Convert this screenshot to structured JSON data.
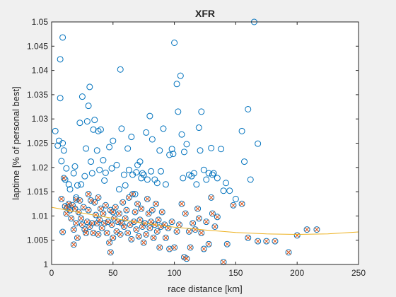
{
  "chart_data": {
    "type": "scatter",
    "title": "XFR",
    "xlabel": "race distance [km]",
    "ylabel": "laptime [% of personal best]",
    "xlim": [
      0,
      250
    ],
    "ylim": [
      1,
      1.05
    ],
    "xticks": [
      "0",
      "50",
      "100",
      "150",
      "200",
      "250"
    ],
    "yticks": [
      "1",
      "1.005",
      "1.01",
      "1.015",
      "1.02",
      "1.025",
      "1.03",
      "1.035",
      "1.04",
      "1.045",
      "1.05"
    ],
    "grid": false,
    "legend": "none",
    "colors": {
      "circles": "#0072BD",
      "crosses": "#D95319",
      "fit": "#EDB120"
    },
    "series": [
      {
        "marker": "circle",
        "points": [
          [
            3,
            1.0275
          ],
          [
            5,
            1.0245
          ],
          [
            6,
            1.0255
          ],
          [
            7,
            1.0423
          ],
          [
            7,
            1.0343
          ],
          [
            8,
            1.0213
          ],
          [
            9,
            1.0468
          ],
          [
            9,
            1.025
          ],
          [
            10,
            1.0235
          ],
          [
            11,
            1.0175
          ],
          [
            12,
            1.0198
          ],
          [
            14,
            1.0165
          ],
          [
            15,
            1.0155
          ],
          [
            18,
            1.0188
          ],
          [
            19,
            1.0202
          ],
          [
            20,
            1.0138
          ],
          [
            21,
            1.0163
          ],
          [
            23,
            1.0292
          ],
          [
            24,
            1.0165
          ],
          [
            25,
            1.0346
          ],
          [
            27,
            1.0182
          ],
          [
            28,
            1.0239
          ],
          [
            29,
            1.0295
          ],
          [
            30,
            1.0327
          ],
          [
            31,
            1.0366
          ],
          [
            32,
            1.0212
          ],
          [
            33,
            1.0188
          ],
          [
            34,
            1.0278
          ],
          [
            35,
            1.0298
          ],
          [
            37,
            1.0235
          ],
          [
            38,
            1.0275
          ],
          [
            39,
            1.0195
          ],
          [
            40,
            1.0278
          ],
          [
            42,
            1.0215
          ],
          [
            43,
            1.0173
          ],
          [
            44,
            1.0189
          ],
          [
            47,
            1.0242
          ],
          [
            49,
            1.0198
          ],
          [
            50,
            1.0255
          ],
          [
            53,
            1.0205
          ],
          [
            55,
            1.0155
          ],
          [
            56,
            1.0402
          ],
          [
            57,
            1.028
          ],
          [
            59,
            1.0185
          ],
          [
            60,
            1.0163
          ],
          [
            62,
            1.0239
          ],
          [
            63,
            1.0195
          ],
          [
            65,
            1.0263
          ],
          [
            66,
            1.0185
          ],
          [
            68,
            1.0145
          ],
          [
            69,
            1.019
          ],
          [
            70,
            1.0205
          ],
          [
            72,
            1.0212
          ],
          [
            73,
            1.0178
          ],
          [
            74,
            1.0188
          ],
          [
            75,
            1.0185
          ],
          [
            77,
            1.0272
          ],
          [
            78,
            1.0175
          ],
          [
            80,
            1.0306
          ],
          [
            81,
            1.0192
          ],
          [
            82,
            1.0258
          ],
          [
            84,
            1.0175
          ],
          [
            86,
            1.0168
          ],
          [
            88,
            1.0235
          ],
          [
            89,
            1.0192
          ],
          [
            91,
            1.028
          ],
          [
            93,
            1.0165
          ],
          [
            96,
            1.0226
          ],
          [
            98,
            1.0238
          ],
          [
            99,
            1.0228
          ],
          [
            100,
            1.0457
          ],
          [
            102,
            1.0372
          ],
          [
            103,
            1.0315
          ],
          [
            105,
            1.0389
          ],
          [
            106,
            1.0268
          ],
          [
            107,
            1.0178
          ],
          [
            108,
            1.0232
          ],
          [
            110,
            1.0248
          ],
          [
            112,
            1.0185
          ],
          [
            114,
            1.0182
          ],
          [
            116,
            1.0188
          ],
          [
            118,
            1.0165
          ],
          [
            120,
            1.0282
          ],
          [
            121,
            1.0235
          ],
          [
            122,
            1.0315
          ],
          [
            124,
            1.0195
          ],
          [
            126,
            1.0175
          ],
          [
            128,
            1.0188
          ],
          [
            130,
            1.024
          ],
          [
            131,
            1.0185
          ],
          [
            132,
            1.0188
          ],
          [
            135,
            1.0178
          ],
          [
            138,
            1.0238
          ],
          [
            140,
            1.0152
          ],
          [
            142,
            1.0168
          ],
          [
            145,
            1.0152
          ],
          [
            150,
            1.0135
          ],
          [
            155,
            1.0275
          ],
          [
            157,
            1.0212
          ],
          [
            160,
            1.032
          ],
          [
            162,
            1.0175
          ],
          [
            165,
            1.05
          ],
          [
            168,
            1.0249
          ]
        ]
      },
      {
        "marker": "circle-cross",
        "points": [
          [
            8,
            1.0135
          ],
          [
            9,
            1.0067
          ],
          [
            10,
            1.0178
          ],
          [
            11,
            1.012
          ],
          [
            12,
            1.0105
          ],
          [
            13,
            1.0118
          ],
          [
            14,
            1.0125
          ],
          [
            15,
            1.0112
          ],
          [
            16,
            1.0095
          ],
          [
            17,
            1.0122
          ],
          [
            18,
            1.0072
          ],
          [
            18,
            1.0041
          ],
          [
            19,
            1.0115
          ],
          [
            20,
            1.0134
          ],
          [
            20,
            1.0085
          ],
          [
            21,
            1.0055
          ],
          [
            22,
            1.0108
          ],
          [
            23,
            1.0132
          ],
          [
            24,
            1.0095
          ],
          [
            25,
            1.0082
          ],
          [
            26,
            1.0118
          ],
          [
            27,
            1.0072
          ],
          [
            28,
            1.0065
          ],
          [
            29,
            1.0088
          ],
          [
            30,
            1.0145
          ],
          [
            30,
            1.0112
          ],
          [
            31,
            1.0078
          ],
          [
            32,
            1.0132
          ],
          [
            33,
            1.0085
          ],
          [
            34,
            1.0065
          ],
          [
            35,
            1.0128
          ],
          [
            36,
            1.0102
          ],
          [
            37,
            1.0085
          ],
          [
            38,
            1.0138
          ],
          [
            38,
            1.0062
          ],
          [
            39,
            1.0092
          ],
          [
            40,
            1.0115
          ],
          [
            41,
            1.0075
          ],
          [
            42,
            1.0105
          ],
          [
            43,
            1.0085
          ],
          [
            44,
            1.0122
          ],
          [
            45,
            1.0065
          ],
          [
            46,
            1.0088
          ],
          [
            47,
            1.0045
          ],
          [
            48,
            1.0112
          ],
          [
            48,
            1.0025
          ],
          [
            49,
            1.0082
          ],
          [
            50,
            1.0108
          ],
          [
            50,
            1.0055
          ],
          [
            51,
            1.0095
          ],
          [
            52,
            1.0118
          ],
          [
            53,
            1.0068
          ],
          [
            54,
            1.0088
          ],
          [
            55,
            1.0105
          ],
          [
            56,
            1.0062
          ],
          [
            57,
            1.0085
          ],
          [
            58,
            1.0128
          ],
          [
            59,
            1.0078
          ],
          [
            60,
            1.0095
          ],
          [
            61,
            1.0112
          ],
          [
            62,
            1.0065
          ],
          [
            63,
            1.0138
          ],
          [
            64,
            1.0082
          ],
          [
            65,
            1.0052
          ],
          [
            66,
            1.0145
          ],
          [
            67,
            1.0088
          ],
          [
            68,
            1.0108
          ],
          [
            69,
            1.0072
          ],
          [
            70,
            1.0125
          ],
          [
            71,
            1.0058
          ],
          [
            72,
            1.0092
          ],
          [
            73,
            1.0115
          ],
          [
            74,
            1.0078
          ],
          [
            75,
            1.0045
          ],
          [
            76,
            1.0085
          ],
          [
            77,
            1.0062
          ],
          [
            78,
            1.0135
          ],
          [
            79,
            1.0105
          ],
          [
            80,
            1.0075
          ],
          [
            81,
            1.0088
          ],
          [
            82,
            1.0112
          ],
          [
            83,
            1.0055
          ],
          [
            84,
            1.0082
          ],
          [
            85,
            1.0125
          ],
          [
            86,
            1.0068
          ],
          [
            87,
            1.0092
          ],
          [
            88,
            1.0035
          ],
          [
            89,
            1.0078
          ],
          [
            90,
            1.0108
          ],
          [
            92,
            1.0082
          ],
          [
            93,
            1.0055
          ],
          [
            95,
            1.0075
          ],
          [
            96,
            1.0032
          ],
          [
            98,
            1.0088
          ],
          [
            100,
            1.0035
          ],
          [
            102,
            1.0068
          ],
          [
            104,
            1.0082
          ],
          [
            106,
            1.0125
          ],
          [
            108,
            1.0015
          ],
          [
            109,
            1.0105
          ],
          [
            110,
            1.0012
          ],
          [
            112,
            1.0068
          ],
          [
            113,
            1.0035
          ],
          [
            115,
            1.0085
          ],
          [
            117,
            1.0072
          ],
          [
            119,
            1.0115
          ],
          [
            120,
            1.0095
          ],
          [
            122,
            1.0065
          ],
          [
            124,
            1.0032
          ],
          [
            126,
            1.0088
          ],
          [
            128,
            1.0042
          ],
          [
            130,
            1.0138
          ],
          [
            131,
            1.0105
          ],
          [
            133,
            1.0078
          ],
          [
            135,
            1.0098
          ],
          [
            140,
            1.0005
          ],
          [
            143,
            1.0042
          ],
          [
            148,
            1.0122
          ],
          [
            155,
            1.0125
          ],
          [
            160,
            1.0055
          ],
          [
            168,
            1.0048
          ],
          [
            175,
            1.0048
          ],
          [
            182,
            1.0048
          ],
          [
            193,
            1.0025
          ],
          [
            200,
            1.006
          ],
          [
            208,
            1.0072
          ],
          [
            216,
            1.0072
          ]
        ]
      }
    ],
    "fit_curve": {
      "x": [
        0,
        25,
        50,
        75,
        100,
        125,
        150,
        175,
        200,
        225,
        250
      ],
      "y": [
        1.0118,
        1.0106,
        1.0095,
        1.0085,
        1.0077,
        1.0071,
        1.0066,
        1.0063,
        1.0062,
        1.0063,
        1.0067
      ]
    }
  }
}
